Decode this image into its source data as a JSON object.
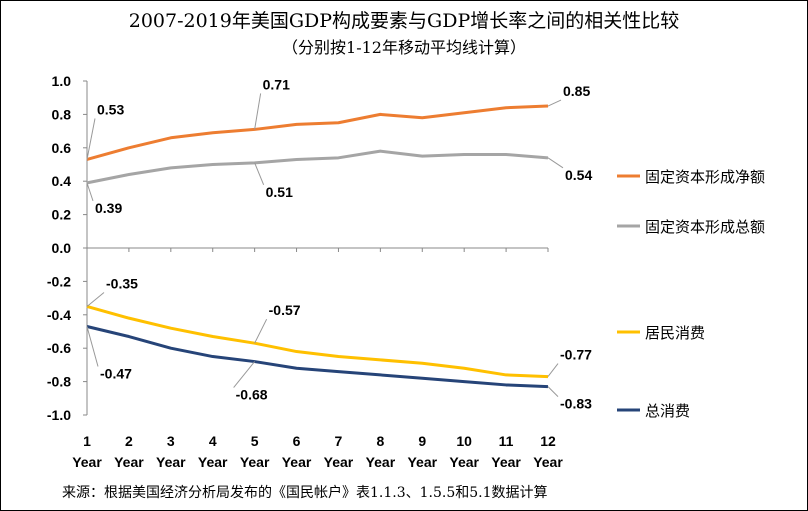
{
  "chart_data": {
    "type": "line",
    "title": "2007-2019年美国GDP构成要素与GDP增长率之间的相关性比较",
    "subtitle": "（分别按1-12年移动平均线计算）",
    "source": "来源：根据美国经济分析局发布的《国民帐户》表1.1.3、1.5.5和5.1数据计算",
    "x": [
      "1",
      "2",
      "3",
      "4",
      "5",
      "6",
      "7",
      "8",
      "9",
      "10",
      "11",
      "12"
    ],
    "x_suffix": "Year",
    "ylim": [
      -1.0,
      1.0
    ],
    "yticks": [
      "1.0",
      "0.8",
      "0.6",
      "0.4",
      "0.2",
      "0.0",
      "-0.2",
      "-0.4",
      "-0.6",
      "-0.8",
      "-1.0"
    ],
    "grid": false,
    "legend_position": "right",
    "series": [
      {
        "name": "固定资本形成净额",
        "color": "#ED7D31",
        "values": [
          0.53,
          0.6,
          0.66,
          0.69,
          0.71,
          0.74,
          0.75,
          0.8,
          0.78,
          0.81,
          0.84,
          0.85
        ],
        "labels": {
          "0": "0.53",
          "4": "0.71",
          "11": "0.85"
        }
      },
      {
        "name": "固定资本形成总额",
        "color": "#A5A5A5",
        "values": [
          0.39,
          0.44,
          0.48,
          0.5,
          0.51,
          0.53,
          0.54,
          0.58,
          0.55,
          0.56,
          0.56,
          0.54
        ],
        "labels": {
          "0": "0.39",
          "4": "0.51",
          "11": "0.54"
        }
      },
      {
        "name": "居民消费",
        "color": "#FFC000",
        "values": [
          -0.35,
          -0.42,
          -0.48,
          -0.53,
          -0.57,
          -0.62,
          -0.65,
          -0.67,
          -0.69,
          -0.72,
          -0.76,
          -0.77
        ],
        "labels": {
          "0": "-0.35",
          "4": "-0.57",
          "11": "-0.77"
        }
      },
      {
        "name": "总消费",
        "color": "#264478",
        "values": [
          -0.47,
          -0.53,
          -0.6,
          -0.65,
          -0.68,
          -0.72,
          -0.74,
          -0.76,
          -0.78,
          -0.8,
          -0.82,
          -0.83
        ],
        "labels": {
          "0": "-0.47",
          "4": "-0.68",
          "11": "-0.83"
        }
      }
    ]
  }
}
